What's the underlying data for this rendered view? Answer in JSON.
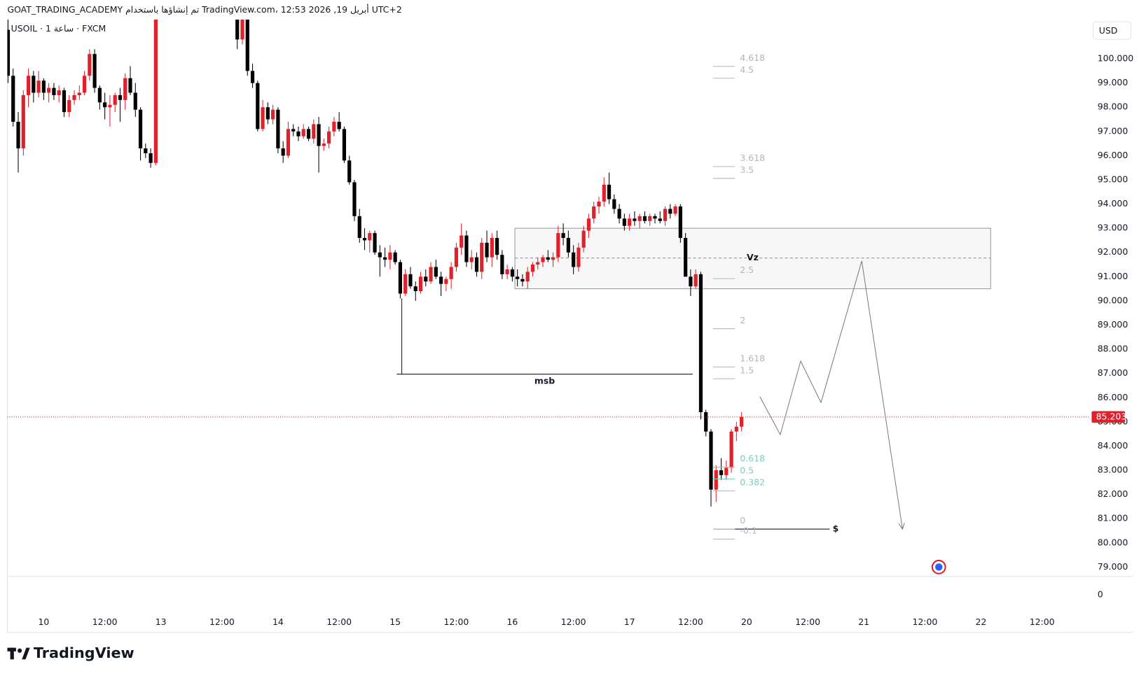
{
  "header": {
    "text": "GOAT_TRADING_ACADEMY تم إنشاؤها باستخدام TradingView.com، 12:53 2026 ,19 أبريل UTC+2"
  },
  "chart_data": {
    "type": "candlestick",
    "symbol": "USOIL · 1 ساعة · FXCM",
    "currency": "USD",
    "up_color": "#e0202a",
    "down_color": "#000000",
    "ylim": [
      78.61,
      101.62
    ],
    "xlim": [
      -7.14,
      205.3
    ],
    "yticks": [
      {
        "value": 79,
        "label": "79.000"
      },
      {
        "value": 80,
        "label": "80.000"
      },
      {
        "value": 81,
        "label": "81.000"
      },
      {
        "value": 82,
        "label": "82.000"
      },
      {
        "value": 83,
        "label": "83.000"
      },
      {
        "value": 84,
        "label": "84.000"
      },
      {
        "value": 85,
        "label": "85.000"
      },
      {
        "value": 86,
        "label": "86.000"
      },
      {
        "value": 87,
        "label": "87.000"
      },
      {
        "value": 88,
        "label": "88.000"
      },
      {
        "value": 89,
        "label": "89.000"
      },
      {
        "value": 90,
        "label": "90.000"
      },
      {
        "value": 91,
        "label": "91.000"
      },
      {
        "value": 92,
        "label": "92.000"
      },
      {
        "value": 93,
        "label": "93.000"
      },
      {
        "value": 94,
        "label": "94.000"
      },
      {
        "value": 95,
        "label": "95.000"
      },
      {
        "value": 96,
        "label": "96.000"
      },
      {
        "value": 97,
        "label": "97.000"
      },
      {
        "value": 98,
        "label": "98.000"
      },
      {
        "value": 99,
        "label": "99.000"
      },
      {
        "value": 100,
        "label": "100.000"
      }
    ],
    "xticks": [
      {
        "value": 0,
        "label": "10"
      },
      {
        "value": 12,
        "label": "12:00"
      },
      {
        "value": 23,
        "label": "13"
      },
      {
        "value": 35,
        "label": "12:00"
      },
      {
        "value": 46,
        "label": "14"
      },
      {
        "value": 58,
        "label": "12:00"
      },
      {
        "value": 69,
        "label": "15"
      },
      {
        "value": 81,
        "label": "12:00"
      },
      {
        "value": 92,
        "label": "16"
      },
      {
        "value": 104,
        "label": "12:00"
      },
      {
        "value": 115,
        "label": "17"
      },
      {
        "value": 127,
        "label": "12:00"
      },
      {
        "value": 138,
        "label": "20"
      },
      {
        "value": 150,
        "label": "12:00"
      },
      {
        "value": 161,
        "label": "21"
      },
      {
        "value": 173,
        "label": "12:00"
      },
      {
        "value": 184,
        "label": "22"
      },
      {
        "value": 196,
        "label": "12:00"
      }
    ],
    "last_price": 85.203,
    "lower_pane_yticks": [
      0
    ],
    "candles": {
      "x": [
        -7,
        -6,
        -5,
        -4,
        -3,
        -2,
        -1,
        0,
        1,
        2,
        3,
        4,
        5,
        6,
        7,
        8,
        9,
        10,
        11,
        12,
        13,
        14,
        15,
        16,
        17,
        18,
        19,
        20,
        21,
        22,
        38,
        39,
        40,
        41,
        42,
        43,
        44,
        45,
        46,
        47,
        48,
        49,
        50,
        51,
        52,
        53,
        54,
        55,
        56,
        57,
        58,
        59,
        60,
        61,
        62,
        63,
        64,
        65,
        66,
        67,
        68,
        69,
        70,
        71,
        72,
        73,
        74,
        75,
        76,
        77,
        78,
        79,
        80,
        81,
        82,
        83,
        84,
        85,
        86,
        87,
        88,
        89,
        90,
        91,
        92,
        93,
        94,
        95,
        96,
        97,
        98,
        99,
        100,
        101,
        102,
        103,
        104,
        105,
        106,
        107,
        108,
        109,
        110,
        111,
        112,
        113,
        114,
        115,
        116,
        117,
        118,
        119,
        120,
        121,
        122,
        123,
        124,
        125,
        126,
        127,
        128,
        129,
        130,
        131,
        132,
        133,
        134,
        135,
        136,
        137
      ],
      "ohlc": [
        [
          101.2,
          101.8,
          99.0,
          99.3
        ],
        [
          99.3,
          99.6,
          97.2,
          97.4
        ],
        [
          97.4,
          97.8,
          95.3,
          96.3
        ],
        [
          96.3,
          98.7,
          96.0,
          98.5
        ],
        [
          98.5,
          99.6,
          98.0,
          99.3
        ],
        [
          99.3,
          99.5,
          98.2,
          98.6
        ],
        [
          98.6,
          99.5,
          98.4,
          99.1
        ],
        [
          99.1,
          99.2,
          98.3,
          98.6
        ],
        [
          98.6,
          99.0,
          98.2,
          98.8
        ],
        [
          98.8,
          99.0,
          98.3,
          98.5
        ],
        [
          98.5,
          98.9,
          98.2,
          98.7
        ],
        [
          98.7,
          98.8,
          97.6,
          97.8
        ],
        [
          97.8,
          98.5,
          97.6,
          98.3
        ],
        [
          98.3,
          98.7,
          98.1,
          98.5
        ],
        [
          98.5,
          98.9,
          98.3,
          98.6
        ],
        [
          98.6,
          99.5,
          98.5,
          99.3
        ],
        [
          99.3,
          100.4,
          99.1,
          100.2
        ],
        [
          100.2,
          100.4,
          98.6,
          98.8
        ],
        [
          98.8,
          98.9,
          97.9,
          98.2
        ],
        [
          98.2,
          98.6,
          97.5,
          98.0
        ],
        [
          98.0,
          98.5,
          97.2,
          98.1
        ],
        [
          98.1,
          98.6,
          97.8,
          98.5
        ],
        [
          98.5,
          98.8,
          97.4,
          98.3
        ],
        [
          98.3,
          99.4,
          97.9,
          99.2
        ],
        [
          99.2,
          99.7,
          98.5,
          98.6
        ],
        [
          98.6,
          99.0,
          97.6,
          97.9
        ],
        [
          97.9,
          98.0,
          95.8,
          96.3
        ],
        [
          96.3,
          96.5,
          95.9,
          96.1
        ],
        [
          96.1,
          96.3,
          95.5,
          95.7
        ],
        [
          95.7,
          102.5,
          95.6,
          102.2
        ],
        [
          101.9,
          102.3,
          100.4,
          100.8
        ],
        [
          100.8,
          102.2,
          100.6,
          101.9
        ],
        [
          101.9,
          102.3,
          99.3,
          99.5
        ],
        [
          99.5,
          99.8,
          98.8,
          99.0
        ],
        [
          99.0,
          99.1,
          97.0,
          97.1
        ],
        [
          97.1,
          98.3,
          97.0,
          98.0
        ],
        [
          98.0,
          98.2,
          97.3,
          97.5
        ],
        [
          97.5,
          98.1,
          97.3,
          97.9
        ],
        [
          97.9,
          98.0,
          96.1,
          96.3
        ],
        [
          96.3,
          96.6,
          95.7,
          96.0
        ],
        [
          96.0,
          97.4,
          95.9,
          97.1
        ],
        [
          97.1,
          97.3,
          96.8,
          97.0
        ],
        [
          97.0,
          97.2,
          96.6,
          96.8
        ],
        [
          96.8,
          97.3,
          96.7,
          97.1
        ],
        [
          97.1,
          97.2,
          96.6,
          96.7
        ],
        [
          96.7,
          97.5,
          96.5,
          97.3
        ],
        [
          97.3,
          97.6,
          95.3,
          96.4
        ],
        [
          96.4,
          96.7,
          96.2,
          96.5
        ],
        [
          96.5,
          97.2,
          96.3,
          97.0
        ],
        [
          97.0,
          97.6,
          96.8,
          97.4
        ],
        [
          97.4,
          97.8,
          97.0,
          97.1
        ],
        [
          97.1,
          97.2,
          95.7,
          95.8
        ],
        [
          95.8,
          96.0,
          94.8,
          94.9
        ],
        [
          94.9,
          95.0,
          93.3,
          93.5
        ],
        [
          93.5,
          93.8,
          92.4,
          92.6
        ],
        [
          92.6,
          93.0,
          92.1,
          92.5
        ],
        [
          92.5,
          92.9,
          92.0,
          92.8
        ],
        [
          92.8,
          92.9,
          91.9,
          92.0
        ],
        [
          92.0,
          92.3,
          91.0,
          91.8
        ],
        [
          91.8,
          92.2,
          91.4,
          91.7
        ],
        [
          91.7,
          92.3,
          91.3,
          92.0
        ],
        [
          92.0,
          92.1,
          91.5,
          91.6
        ],
        [
          91.6,
          91.7,
          90.1,
          90.3
        ],
        [
          90.3,
          91.3,
          90.2,
          91.1
        ],
        [
          91.1,
          91.4,
          90.5,
          90.6
        ],
        [
          90.6,
          90.8,
          90.0,
          90.4
        ],
        [
          90.4,
          91.2,
          90.3,
          91.0
        ],
        [
          91.0,
          91.3,
          90.6,
          90.8
        ],
        [
          90.8,
          91.6,
          90.7,
          91.4
        ],
        [
          91.4,
          91.7,
          90.9,
          91.0
        ],
        [
          91.0,
          91.2,
          90.2,
          90.7
        ],
        [
          90.7,
          91.0,
          90.4,
          90.9
        ],
        [
          90.9,
          91.6,
          90.5,
          91.4
        ],
        [
          91.4,
          92.4,
          91.2,
          92.2
        ],
        [
          92.2,
          93.2,
          91.9,
          92.7
        ],
        [
          92.7,
          92.9,
          91.4,
          91.6
        ],
        [
          91.6,
          92.1,
          91.3,
          91.8
        ],
        [
          91.8,
          92.0,
          91.0,
          91.2
        ],
        [
          91.2,
          92.6,
          90.9,
          92.4
        ],
        [
          92.4,
          92.9,
          91.6,
          91.8
        ],
        [
          91.8,
          92.8,
          91.4,
          92.6
        ],
        [
          92.6,
          92.9,
          91.7,
          91.9
        ],
        [
          91.9,
          92.1,
          90.9,
          91.1
        ],
        [
          91.1,
          91.5,
          90.9,
          91.3
        ],
        [
          91.3,
          91.4,
          90.8,
          91.0
        ],
        [
          91.0,
          91.3,
          90.6,
          90.9
        ],
        [
          90.9,
          91.1,
          90.6,
          90.8
        ],
        [
          90.8,
          91.4,
          90.5,
          91.2
        ],
        [
          91.2,
          91.6,
          91.0,
          91.5
        ],
        [
          91.5,
          91.8,
          91.3,
          91.6
        ],
        [
          91.6,
          91.9,
          91.4,
          91.8
        ],
        [
          91.8,
          92.1,
          91.6,
          91.7
        ],
        [
          91.7,
          92.0,
          91.4,
          91.8
        ],
        [
          91.8,
          93.1,
          91.6,
          92.8
        ],
        [
          92.8,
          93.2,
          92.3,
          92.6
        ],
        [
          92.6,
          92.9,
          91.8,
          92.0
        ],
        [
          92.0,
          92.3,
          91.1,
          91.4
        ],
        [
          91.4,
          92.4,
          91.2,
          92.2
        ],
        [
          92.2,
          93.1,
          92.0,
          92.9
        ],
        [
          92.9,
          93.6,
          92.6,
          93.4
        ],
        [
          93.4,
          94.1,
          93.2,
          93.9
        ],
        [
          93.9,
          94.3,
          93.6,
          94.1
        ],
        [
          94.1,
          95.1,
          93.9,
          94.8
        ],
        [
          94.8,
          95.3,
          94.0,
          94.2
        ],
        [
          94.2,
          94.4,
          93.6,
          93.8
        ],
        [
          93.8,
          94.0,
          93.2,
          93.4
        ],
        [
          93.4,
          93.6,
          92.9,
          93.1
        ],
        [
          93.1,
          93.6,
          92.9,
          93.4
        ],
        [
          93.4,
          93.7,
          93.1,
          93.3
        ],
        [
          93.3,
          93.6,
          93.0,
          93.5
        ],
        [
          93.5,
          93.7,
          93.2,
          93.3
        ],
        [
          93.3,
          93.6,
          93.1,
          93.5
        ],
        [
          93.5,
          93.6,
          93.2,
          93.4
        ],
        [
          93.4,
          93.7,
          93.2,
          93.3
        ],
        [
          93.3,
          93.9,
          93.1,
          93.8
        ],
        [
          93.8,
          94.0,
          93.4,
          93.6
        ],
        [
          93.6,
          94.0,
          93.5,
          93.9
        ],
        [
          93.9,
          94.0,
          92.4,
          92.6
        ],
        [
          92.6,
          92.8,
          91.0,
          91.0
        ],
        [
          91.0,
          91.3,
          90.2,
          90.6
        ],
        [
          90.6,
          91.3,
          90.5,
          91.1
        ],
        [
          91.1,
          91.2,
          85.1,
          85.4
        ],
        [
          85.4,
          85.5,
          84.4,
          84.6
        ],
        [
          84.6,
          84.7,
          81.5,
          82.2
        ],
        [
          82.2,
          83.2,
          81.7,
          83.0
        ],
        [
          83.0,
          83.5,
          82.6,
          82.8
        ],
        [
          82.8,
          83.4,
          82.6,
          83.1
        ],
        [
          83.1,
          84.7,
          82.9,
          84.6
        ],
        [
          84.6,
          85.0,
          84.2,
          84.8
        ],
        [
          84.8,
          85.4,
          84.6,
          85.203
        ]
      ]
    },
    "zone": {
      "label": "Vz",
      "top": 93.0,
      "bottom": 90.5,
      "mid": 91.77,
      "x_start": 92.5,
      "x_end": 185.9
    },
    "msb": {
      "label": "msb",
      "price": 86.97,
      "from_price": 90.1,
      "x_start": 69.3,
      "x_end": 127.4
    },
    "target": {
      "label": "$",
      "price": 80.57,
      "x_start": 131.6,
      "x_end": 154.3
    },
    "fib": {
      "from": 80.57,
      "to": 84.71,
      "x_start": 131.4,
      "x_end": 135.7,
      "levels": [
        4.618,
        4.5,
        3.618,
        3.5,
        2.5,
        2,
        1.618,
        1.5,
        0.618,
        0.5,
        0.382,
        0,
        -0.1
      ],
      "colors": [
        "#b2b5be",
        "#b2b5be",
        "#b2b5be",
        "#b2b5be",
        "#b2b5be",
        "#b2b5be",
        "#b2b5be",
        "#b2b5be",
        "#80c9c0",
        "#80c9c0",
        "#80c9c0",
        "#b2b5be",
        "#b2b5be"
      ]
    },
    "projection": {
      "x": [
        140.6,
        144.6,
        148.6,
        152.6,
        160.6,
        168.6
      ],
      "y": [
        86.04,
        84.47,
        87.51,
        85.8,
        91.65,
        80.57
      ]
    }
  },
  "footer": {
    "logo": "TradingView"
  }
}
